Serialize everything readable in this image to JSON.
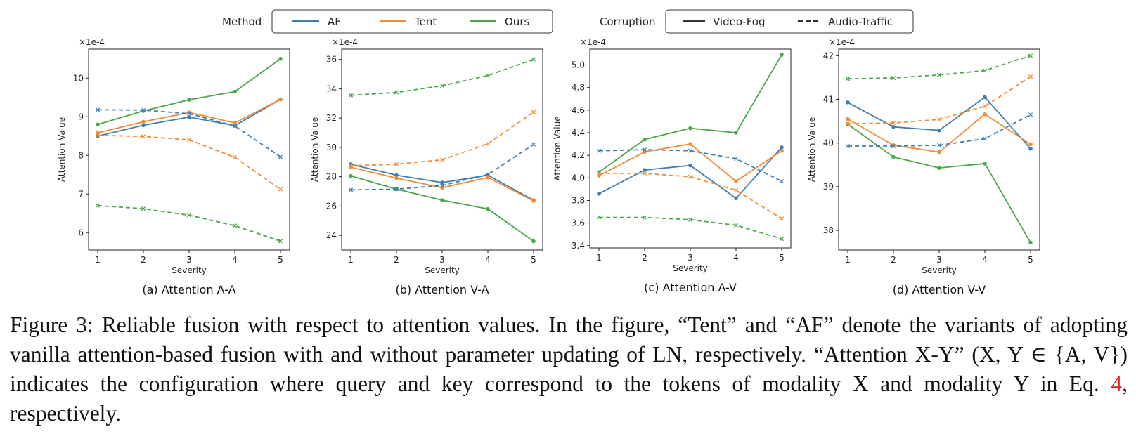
{
  "legend": {
    "method_title": "Method",
    "methods": [
      {
        "name": "AF",
        "color": "#3d7fb5"
      },
      {
        "name": "Tent",
        "color": "#f28c35"
      },
      {
        "name": "Ours",
        "color": "#4aa84a"
      }
    ],
    "corruption_title": "Corruption",
    "corruptions": [
      {
        "name": "Video-Fog",
        "style": "solid"
      },
      {
        "name": "Audio-Traffic",
        "style": "dashed"
      }
    ]
  },
  "chart_data": [
    {
      "type": "line",
      "caption": "(a) Attention A-A",
      "xlabel": "Severity",
      "ylabel": "Attention Value",
      "scale_label": "×1e-4",
      "x": [
        1,
        2,
        3,
        4,
        5
      ],
      "xlim": [
        0.8,
        5.2
      ],
      "ylim": [
        5.55,
        10.75
      ],
      "yticks": [
        6,
        7,
        8,
        9,
        10
      ],
      "series": [
        {
          "method": "AF",
          "corruption": "Video-Fog",
          "values": [
            8.5,
            8.78,
            8.99,
            8.77,
            9.45
          ]
        },
        {
          "method": "Tent",
          "corruption": "Video-Fog",
          "values": [
            8.58,
            8.87,
            9.11,
            8.84,
            9.45
          ]
        },
        {
          "method": "Ours",
          "corruption": "Video-Fog",
          "values": [
            8.8,
            9.15,
            9.44,
            9.65,
            10.5
          ]
        },
        {
          "method": "AF",
          "corruption": "Audio-Traffic",
          "values": [
            9.18,
            9.17,
            9.08,
            8.76,
            7.96
          ]
        },
        {
          "method": "Tent",
          "corruption": "Audio-Traffic",
          "values": [
            8.52,
            8.49,
            8.4,
            7.95,
            7.12
          ]
        },
        {
          "method": "Ours",
          "corruption": "Audio-Traffic",
          "values": [
            6.7,
            6.62,
            6.45,
            6.18,
            5.78
          ]
        }
      ]
    },
    {
      "type": "line",
      "caption": "(b) Attention V-A",
      "xlabel": "Severity",
      "ylabel": "Attention Value",
      "scale_label": "×1e-4",
      "x": [
        1,
        2,
        3,
        4,
        5
      ],
      "xlim": [
        0.8,
        5.2
      ],
      "ylim": [
        23.0,
        36.7
      ],
      "yticks": [
        24,
        26,
        28,
        30,
        32,
        34,
        36
      ],
      "series": [
        {
          "method": "AF",
          "corruption": "Video-Fog",
          "values": [
            28.85,
            28.1,
            27.6,
            28.1,
            26.4
          ]
        },
        {
          "method": "Tent",
          "corruption": "Video-Fog",
          "values": [
            28.65,
            27.9,
            27.25,
            27.95,
            26.35
          ]
        },
        {
          "method": "Ours",
          "corruption": "Video-Fog",
          "values": [
            28.05,
            27.15,
            26.4,
            25.8,
            23.6
          ]
        },
        {
          "method": "AF",
          "corruption": "Audio-Traffic",
          "values": [
            27.1,
            27.15,
            27.4,
            28.15,
            30.2
          ]
        },
        {
          "method": "Tent",
          "corruption": "Audio-Traffic",
          "values": [
            28.75,
            28.85,
            29.15,
            30.25,
            32.4
          ]
        },
        {
          "method": "Ours",
          "corruption": "Audio-Traffic",
          "values": [
            33.55,
            33.75,
            34.2,
            34.9,
            36.0
          ]
        }
      ]
    },
    {
      "type": "line",
      "caption": "(c) Attention A-V",
      "xlabel": "Severity",
      "ylabel": "Attention Value",
      "scale_label": "×1e-4",
      "x": [
        1,
        2,
        3,
        4,
        5
      ],
      "xlim": [
        0.8,
        5.2
      ],
      "ylim": [
        3.38,
        5.14
      ],
      "yticks": [
        3.4,
        3.6,
        3.8,
        4.0,
        4.2,
        4.4,
        4.6,
        4.8,
        5.0
      ],
      "series": [
        {
          "method": "AF",
          "corruption": "Video-Fog",
          "values": [
            3.86,
            4.07,
            4.11,
            3.82,
            4.27
          ]
        },
        {
          "method": "Tent",
          "corruption": "Video-Fog",
          "values": [
            4.02,
            4.23,
            4.3,
            3.97,
            4.24
          ]
        },
        {
          "method": "Ours",
          "corruption": "Video-Fog",
          "values": [
            4.05,
            4.34,
            4.44,
            4.4,
            5.09
          ]
        },
        {
          "method": "AF",
          "corruption": "Audio-Traffic",
          "values": [
            4.24,
            4.25,
            4.24,
            4.17,
            3.97
          ]
        },
        {
          "method": "Tent",
          "corruption": "Audio-Traffic",
          "values": [
            4.04,
            4.04,
            4.01,
            3.89,
            3.64
          ]
        },
        {
          "method": "Ours",
          "corruption": "Audio-Traffic",
          "values": [
            3.65,
            3.65,
            3.63,
            3.58,
            3.46
          ]
        }
      ]
    },
    {
      "type": "line",
      "caption": "(d) Attention V-V",
      "xlabel": "Severity",
      "ylabel": "Attention Value",
      "scale_label": "×1e-4",
      "x": [
        1,
        2,
        3,
        4,
        5
      ],
      "xlim": [
        0.8,
        5.2
      ],
      "ylim": [
        37.55,
        42.15
      ],
      "yticks": [
        38,
        39,
        40,
        41,
        42
      ],
      "series": [
        {
          "method": "AF",
          "corruption": "Video-Fog",
          "values": [
            40.93,
            40.37,
            40.29,
            41.05,
            39.87
          ]
        },
        {
          "method": "Tent",
          "corruption": "Video-Fog",
          "values": [
            40.55,
            39.95,
            39.79,
            40.66,
            39.97
          ]
        },
        {
          "method": "Ours",
          "corruption": "Video-Fog",
          "values": [
            40.43,
            39.68,
            39.43,
            39.53,
            37.72
          ]
        },
        {
          "method": "AF",
          "corruption": "Audio-Traffic",
          "values": [
            39.93,
            39.93,
            39.95,
            40.1,
            40.65
          ]
        },
        {
          "method": "Tent",
          "corruption": "Audio-Traffic",
          "values": [
            40.44,
            40.46,
            40.54,
            40.84,
            41.52
          ]
        },
        {
          "method": "Ours",
          "corruption": "Audio-Traffic",
          "values": [
            41.47,
            41.49,
            41.56,
            41.66,
            42.0
          ]
        }
      ]
    }
  ],
  "caption": {
    "label": "Figure 3:",
    "p1": " Reliable fusion with respect to attention values.  In the figure, “Tent” and “AF” denote the variants of adopting vanilla attention-based fusion with and without parameter updating of LN, respectively.  “Attention X-Y” (X, Y ∈ {A, V}) indicates the configuration where query and key correspond to the tokens of modality X and modality Y in Eq. ",
    "ref": "4",
    "p2": ", respectively."
  }
}
